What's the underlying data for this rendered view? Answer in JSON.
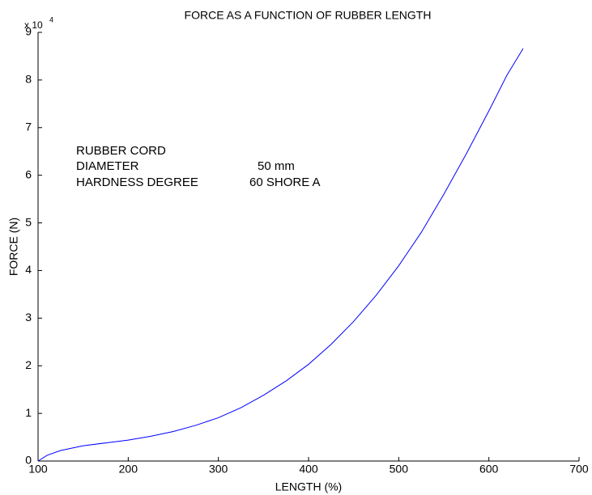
{
  "chart_data": {
    "type": "line",
    "title": "FORCE AS A FUNCTION OF RUBBER LENGTH",
    "x_label": "LENGTH (%)",
    "y_label": "FORCE  (N)",
    "y_scale_base": "x 10",
    "y_scale_exponent": "4",
    "annotations": [
      "RUBBER CORD",
      "DIAMETER",
      "50 mm",
      "HARDNESS DEGREE",
      "60 SHORE A"
    ],
    "x": [
      100,
      110,
      125,
      150,
      175,
      200,
      225,
      250,
      275,
      300,
      325,
      350,
      375,
      400,
      425,
      450,
      475,
      500,
      525,
      550,
      575,
      600,
      620,
      638
    ],
    "series": [
      {
        "name": "Force",
        "color": "#0000ff",
        "values": [
          0,
          0.12,
          0.22,
          0.32,
          0.38,
          0.44,
          0.52,
          0.62,
          0.75,
          0.91,
          1.12,
          1.38,
          1.68,
          2.03,
          2.45,
          2.93,
          3.48,
          4.1,
          4.8,
          5.6,
          6.45,
          7.35,
          8.1,
          8.66
        ]
      }
    ],
    "xlim": [
      100,
      700
    ],
    "xticks": [
      100,
      200,
      300,
      400,
      500,
      600,
      700
    ],
    "ylim": [
      0,
      9
    ],
    "yticks": [
      0,
      1,
      2,
      3,
      4,
      5,
      6,
      7,
      8,
      9
    ],
    "grid": false
  }
}
